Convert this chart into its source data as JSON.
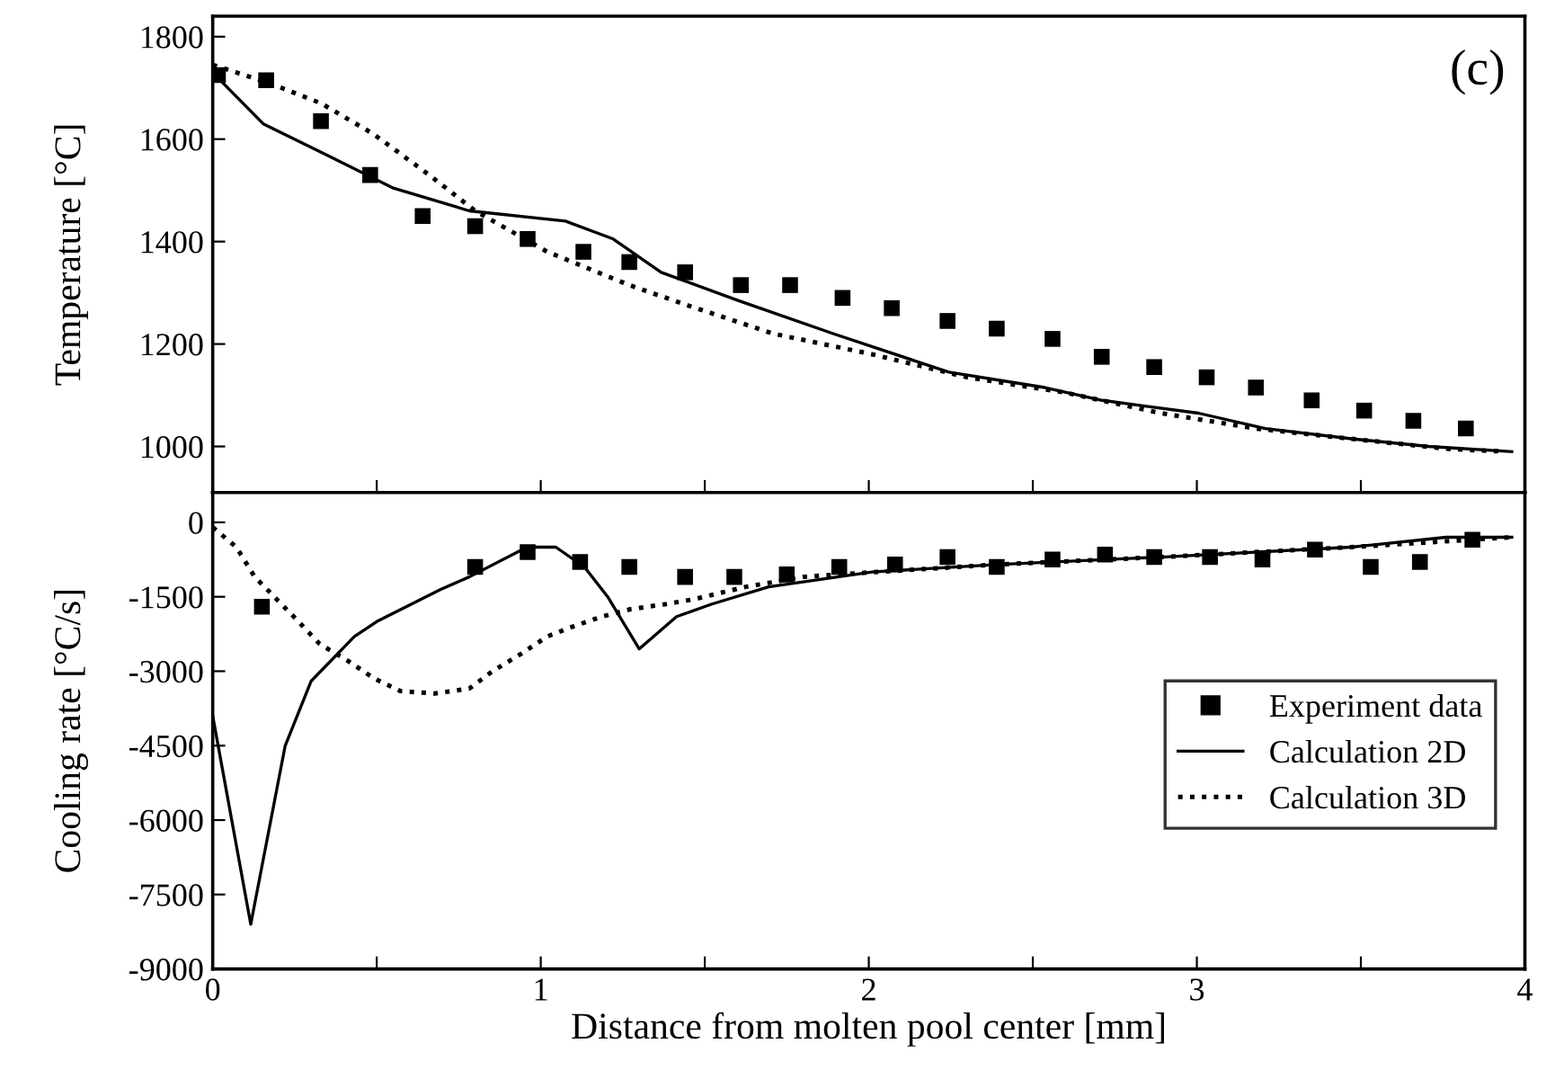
{
  "chart_data": [
    {
      "type": "line",
      "ylabel": "Temperature [°C]",
      "xlim": [
        0,
        4
      ],
      "xticks": [
        0,
        {
          "value": 0.5,
          "label": null
        },
        1,
        {
          "value": 1.5,
          "label": null
        },
        2,
        {
          "value": 2.5,
          "label": null
        },
        3,
        {
          "value": 3.5,
          "label": null
        },
        4
      ],
      "ylim": [
        910,
        1840
      ],
      "yticks": [
        1000,
        1200,
        1400,
        1600,
        1800
      ],
      "tick_labels": "y",
      "grid": false,
      "legend": false,
      "annotations": [
        "(c)"
      ],
      "series": [
        {
          "type": "scatter",
          "marker": "square",
          "color": "#000000",
          "x": [
            0.016,
            0.163,
            0.33,
            0.48,
            0.64,
            0.8,
            0.96,
            1.13,
            1.27,
            1.44,
            1.61,
            1.76,
            1.92,
            2.07,
            2.24,
            2.39,
            2.56,
            2.71,
            2.87,
            3.03,
            3.18,
            3.35,
            3.51,
            3.66,
            3.82
          ],
          "values": [
            1725,
            1715,
            1635,
            1530,
            1450,
            1430,
            1405,
            1380,
            1360,
            1340,
            1315,
            1315,
            1290,
            1270,
            1245,
            1230,
            1210,
            1175,
            1155,
            1135,
            1115,
            1090,
            1070,
            1050,
            1035
          ]
        },
        {
          "line_style": "solid",
          "color": "#000000",
          "x": [
            0.0,
            0.154,
            0.344,
            0.548,
            0.782,
            1.075,
            1.221,
            1.367,
            1.601,
            1.893,
            2.244,
            2.537,
            2.712,
            3.005,
            3.209,
            3.472,
            3.706,
            3.96
          ],
          "values": [
            1730,
            1630,
            1570,
            1505,
            1460,
            1440,
            1405,
            1340,
            1285,
            1220,
            1145,
            1115,
            1090,
            1065,
            1035,
            1015,
            1000,
            990
          ]
        },
        {
          "line_style": "dotted",
          "color": "#000000",
          "x": [
            0.0,
            0.17,
            0.33,
            0.49,
            0.66,
            0.8,
            1.02,
            1.27,
            1.45,
            1.71,
            2.01,
            2.3,
            2.6,
            2.89,
            3.18,
            3.47,
            3.77,
            3.94
          ],
          "values": [
            1745,
            1710,
            1670,
            1610,
            1530,
            1460,
            1380,
            1315,
            1275,
            1220,
            1180,
            1135,
            1105,
            1065,
            1035,
            1015,
            995,
            990
          ]
        }
      ]
    },
    {
      "type": "line",
      "xlabel": "Distance from molten pool center [mm]",
      "ylabel": "Cooling rate [°C/s]",
      "xlim": [
        0,
        4
      ],
      "xticks": [
        0,
        {
          "value": 0.5,
          "label": null
        },
        1,
        {
          "value": 1.5,
          "label": null
        },
        2,
        {
          "value": 2.5,
          "label": null
        },
        3,
        {
          "value": 3.5,
          "label": null
        },
        4
      ],
      "ylim": [
        -9000,
        600
      ],
      "yticks": [
        0,
        -1500,
        -3000,
        -4500,
        -6000,
        -7500,
        -9000
      ],
      "grid": false,
      "legend": "center right",
      "series": [
        {
          "type": "scatter",
          "name": "Experiment data",
          "marker": "square",
          "color": "#000000",
          "x": [
            0.15,
            0.8,
            0.96,
            1.12,
            1.27,
            1.44,
            1.59,
            1.75,
            1.91,
            2.08,
            2.24,
            2.39,
            2.56,
            2.72,
            2.87,
            3.04,
            3.2,
            3.36,
            3.53,
            3.68,
            3.84
          ],
          "values": [
            -1700,
            -900,
            -600,
            -800,
            -900,
            -1100,
            -1100,
            -1050,
            -900,
            -850,
            -700,
            -900,
            -750,
            -650,
            -700,
            -700,
            -750,
            -550,
            -900,
            -800,
            -350
          ]
        },
        {
          "name": "Calculation 2D",
          "line_style": "solid",
          "color": "#000000",
          "x": [
            0.0,
            0.116,
            0.221,
            0.3,
            0.432,
            0.5,
            0.695,
            0.782,
            0.958,
            1.046,
            1.133,
            1.204,
            1.3,
            1.414,
            1.52,
            1.695,
            2.01,
            2.39,
            2.89,
            3.47,
            3.76,
            3.96
          ],
          "values": [
            -3900,
            -8100,
            -4500,
            -3200,
            -2300,
            -2000,
            -1350,
            -1100,
            -500,
            -500,
            -900,
            -1500,
            -2550,
            -1900,
            -1650,
            -1300,
            -1000,
            -850,
            -700,
            -500,
            -300,
            -300
          ]
        },
        {
          "name": "Calculation 3D",
          "line_style": "dotted",
          "color": "#000000",
          "x": [
            0.0,
            0.072,
            0.128,
            0.247,
            0.326,
            0.414,
            0.493,
            0.572,
            0.677,
            0.782,
            0.853,
            0.94,
            1.02,
            1.098,
            1.186,
            1.274,
            1.379,
            1.467,
            1.625,
            1.8,
            1.905,
            2.39,
            2.89,
            3.47,
            3.96
          ],
          "values": [
            -100,
            -500,
            -1100,
            -1900,
            -2450,
            -2800,
            -3150,
            -3400,
            -3450,
            -3350,
            -3000,
            -2650,
            -2300,
            -2100,
            -1900,
            -1750,
            -1650,
            -1550,
            -1300,
            -1100,
            -1050,
            -850,
            -700,
            -500,
            -300
          ]
        }
      ]
    }
  ]
}
